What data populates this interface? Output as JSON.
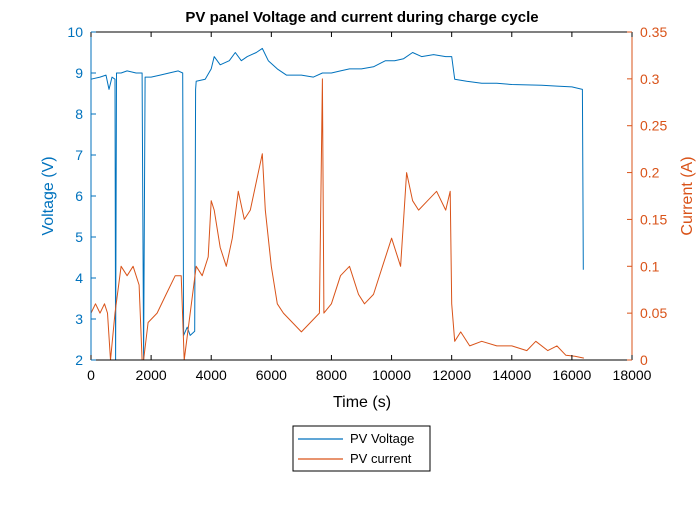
{
  "chart_data": {
    "type": "line",
    "title": "PV panel Voltage and current during charge cycle",
    "xlabel": "Time (s)",
    "ylabel_left": "Voltage (V)",
    "ylabel_right": "Current (A)",
    "xlim": [
      0,
      18000
    ],
    "ylim_left": [
      2,
      10
    ],
    "ylim_right": [
      0,
      0.35
    ],
    "x_ticks": [
      "0",
      "2000",
      "4000",
      "6000",
      "8000",
      "10000",
      "12000",
      "14000",
      "16000",
      "18000"
    ],
    "y_left_ticks": [
      "2",
      "3",
      "4",
      "5",
      "6",
      "7",
      "8",
      "9",
      "10"
    ],
    "y_right_ticks": [
      "0",
      "0.05",
      "0.1",
      "0.15",
      "0.2",
      "0.25",
      "0.3",
      "0.35"
    ],
    "grid": false,
    "legend_placement": "bottom-center outside",
    "colors": {
      "voltage": "#0072BD",
      "current": "#D95319",
      "axis": "#000000"
    },
    "series": [
      {
        "name": "PV Voltage",
        "axis": "left",
        "color": "#0072BD",
        "points": [
          [
            0,
            8.85
          ],
          [
            300,
            8.9
          ],
          [
            500,
            8.95
          ],
          [
            600,
            8.6
          ],
          [
            700,
            8.9
          ],
          [
            800,
            8.85
          ],
          [
            820,
            2.0
          ],
          [
            850,
            9.0
          ],
          [
            1000,
            9.0
          ],
          [
            1200,
            9.05
          ],
          [
            1500,
            9.0
          ],
          [
            1700,
            9.0
          ],
          [
            1750,
            2.0
          ],
          [
            1800,
            8.9
          ],
          [
            2000,
            8.9
          ],
          [
            2300,
            8.95
          ],
          [
            2600,
            9.0
          ],
          [
            2900,
            9.05
          ],
          [
            3050,
            9.0
          ],
          [
            3080,
            2.6
          ],
          [
            3200,
            2.8
          ],
          [
            3300,
            2.6
          ],
          [
            3450,
            2.7
          ],
          [
            3480,
            8.6
          ],
          [
            3500,
            8.8
          ],
          [
            3800,
            8.85
          ],
          [
            4000,
            9.1
          ],
          [
            4100,
            9.4
          ],
          [
            4300,
            9.2
          ],
          [
            4600,
            9.3
          ],
          [
            4800,
            9.5
          ],
          [
            5000,
            9.3
          ],
          [
            5200,
            9.4
          ],
          [
            5500,
            9.5
          ],
          [
            5700,
            9.6
          ],
          [
            5900,
            9.3
          ],
          [
            6200,
            9.1
          ],
          [
            6500,
            8.95
          ],
          [
            7000,
            8.95
          ],
          [
            7400,
            8.9
          ],
          [
            7700,
            9.0
          ],
          [
            8000,
            9.0
          ],
          [
            8300,
            9.05
          ],
          [
            8600,
            9.1
          ],
          [
            9000,
            9.1
          ],
          [
            9400,
            9.15
          ],
          [
            9800,
            9.3
          ],
          [
            10100,
            9.3
          ],
          [
            10400,
            9.35
          ],
          [
            10700,
            9.5
          ],
          [
            11000,
            9.4
          ],
          [
            11400,
            9.45
          ],
          [
            11800,
            9.4
          ],
          [
            12000,
            9.4
          ],
          [
            12100,
            8.85
          ],
          [
            12500,
            8.8
          ],
          [
            13000,
            8.75
          ],
          [
            13500,
            8.75
          ],
          [
            14000,
            8.72
          ],
          [
            15000,
            8.7
          ],
          [
            15500,
            8.68
          ],
          [
            16000,
            8.66
          ],
          [
            16350,
            8.6
          ],
          [
            16370,
            5.8
          ],
          [
            16380,
            4.2
          ]
        ]
      },
      {
        "name": "PV current",
        "axis": "right",
        "color": "#D95319",
        "points": [
          [
            0,
            0.05
          ],
          [
            150,
            0.06
          ],
          [
            300,
            0.05
          ],
          [
            450,
            0.06
          ],
          [
            550,
            0.05
          ],
          [
            650,
            0.0
          ],
          [
            800,
            0.05
          ],
          [
            1000,
            0.1
          ],
          [
            1200,
            0.09
          ],
          [
            1400,
            0.1
          ],
          [
            1600,
            0.08
          ],
          [
            1700,
            0.0
          ],
          [
            1750,
            0.0
          ],
          [
            1900,
            0.04
          ],
          [
            2200,
            0.05
          ],
          [
            2500,
            0.07
          ],
          [
            2800,
            0.09
          ],
          [
            3000,
            0.09
          ],
          [
            3100,
            0.0
          ],
          [
            3300,
            0.05
          ],
          [
            3500,
            0.1
          ],
          [
            3700,
            0.09
          ],
          [
            3900,
            0.11
          ],
          [
            4000,
            0.17
          ],
          [
            4100,
            0.16
          ],
          [
            4300,
            0.12
          ],
          [
            4500,
            0.1
          ],
          [
            4700,
            0.13
          ],
          [
            4900,
            0.18
          ],
          [
            5100,
            0.15
          ],
          [
            5300,
            0.16
          ],
          [
            5500,
            0.19
          ],
          [
            5700,
            0.22
          ],
          [
            5800,
            0.16
          ],
          [
            6000,
            0.1
          ],
          [
            6200,
            0.06
          ],
          [
            6400,
            0.05
          ],
          [
            6700,
            0.04
          ],
          [
            7000,
            0.03
          ],
          [
            7300,
            0.04
          ],
          [
            7600,
            0.05
          ],
          [
            7700,
            0.3
          ],
          [
            7750,
            0.05
          ],
          [
            8000,
            0.06
          ],
          [
            8300,
            0.09
          ],
          [
            8600,
            0.1
          ],
          [
            8900,
            0.07
          ],
          [
            9100,
            0.06
          ],
          [
            9400,
            0.07
          ],
          [
            9700,
            0.1
          ],
          [
            10000,
            0.13
          ],
          [
            10300,
            0.1
          ],
          [
            10500,
            0.2
          ],
          [
            10700,
            0.17
          ],
          [
            10900,
            0.16
          ],
          [
            11200,
            0.17
          ],
          [
            11500,
            0.18
          ],
          [
            11800,
            0.16
          ],
          [
            11950,
            0.18
          ],
          [
            12000,
            0.06
          ],
          [
            12100,
            0.02
          ],
          [
            12300,
            0.03
          ],
          [
            12600,
            0.015
          ],
          [
            13000,
            0.02
          ],
          [
            13500,
            0.015
          ],
          [
            14000,
            0.015
          ],
          [
            14500,
            0.01
          ],
          [
            14800,
            0.02
          ],
          [
            15200,
            0.01
          ],
          [
            15500,
            0.015
          ],
          [
            15800,
            0.005
          ],
          [
            16100,
            0.004
          ],
          [
            16400,
            0.002
          ]
        ]
      }
    ]
  }
}
